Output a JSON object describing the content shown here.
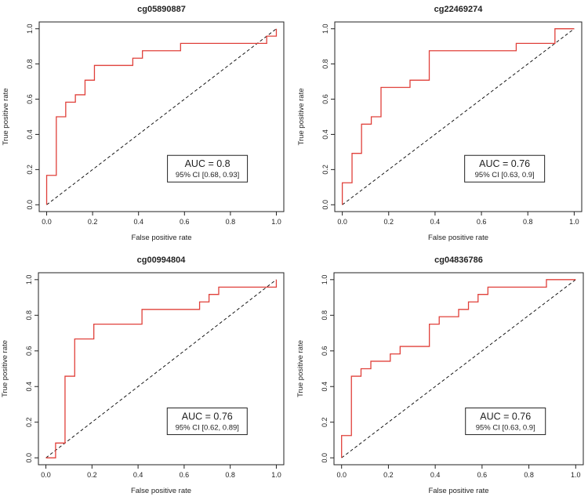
{
  "chart_data": [
    {
      "type": "line",
      "title": "cg05890887",
      "xlabel": "False positive rate",
      "ylabel": "True positive rate",
      "xlim": [
        0,
        1
      ],
      "ylim": [
        0,
        1
      ],
      "xticks": [
        "0.0",
        "0.2",
        "0.4",
        "0.6",
        "0.8",
        "1.0"
      ],
      "yticks": [
        "0.0",
        "0.2",
        "0.4",
        "0.6",
        "0.8",
        "1.0"
      ],
      "auc_label": "AUC = 0.8",
      "ci_label": "95% CI [0.68, 0.93]",
      "series": [
        {
          "name": "ROC",
          "color": "#e0403a",
          "x": [
            0,
            0,
            0.042,
            0.042,
            0.083,
            0.083,
            0.125,
            0.125,
            0.167,
            0.167,
            0.208,
            0.208,
            0.375,
            0.375,
            0.417,
            0.417,
            0.583,
            0.583,
            0.958,
            0.958,
            1.0,
            1.0
          ],
          "y": [
            0,
            0.167,
            0.167,
            0.5,
            0.5,
            0.583,
            0.583,
            0.625,
            0.625,
            0.708,
            0.708,
            0.792,
            0.792,
            0.833,
            0.833,
            0.875,
            0.875,
            0.917,
            0.917,
            0.958,
            0.958,
            1.0
          ]
        },
        {
          "name": "chance",
          "color": "#000000",
          "dash": true,
          "x": [
            0,
            1
          ],
          "y": [
            0,
            1
          ]
        }
      ]
    },
    {
      "type": "line",
      "title": "cg22469274",
      "xlabel": "False positive rate",
      "ylabel": "True positive rate",
      "xlim": [
        0,
        1
      ],
      "ylim": [
        0,
        1
      ],
      "xticks": [
        "0.0",
        "0.2",
        "0.4",
        "0.6",
        "0.8",
        "1.0"
      ],
      "yticks": [
        "0.0",
        "0.2",
        "0.4",
        "0.6",
        "0.8",
        "1.0"
      ],
      "auc_label": "AUC = 0.76",
      "ci_label": "95% CI [0.63, 0.9]",
      "series": [
        {
          "name": "ROC",
          "color": "#e0403a",
          "x": [
            0,
            0,
            0.042,
            0.042,
            0.083,
            0.083,
            0.125,
            0.125,
            0.167,
            0.167,
            0.292,
            0.292,
            0.375,
            0.375,
            0.75,
            0.75,
            0.917,
            0.917,
            1.0,
            1.0
          ],
          "y": [
            0,
            0.125,
            0.125,
            0.292,
            0.292,
            0.458,
            0.458,
            0.5,
            0.5,
            0.667,
            0.667,
            0.708,
            0.708,
            0.875,
            0.875,
            0.917,
            0.917,
            1.0,
            1.0,
            1.0
          ]
        },
        {
          "name": "chance",
          "color": "#000000",
          "dash": true,
          "x": [
            0,
            1
          ],
          "y": [
            0,
            1
          ]
        }
      ]
    },
    {
      "type": "line",
      "title": "cg00994804",
      "xlabel": "False positive rate",
      "ylabel": "True positive rate",
      "xlim": [
        0,
        1
      ],
      "ylim": [
        0,
        1
      ],
      "xticks": [
        "0.0",
        "0.2",
        "0.4",
        "0.6",
        "0.8",
        "1.0"
      ],
      "yticks": [
        "0.0",
        "0.2",
        "0.4",
        "0.6",
        "0.8",
        "1.0"
      ],
      "auc_label": "AUC = 0.76",
      "ci_label": "95% CI [0.62, 0.89]",
      "series": [
        {
          "name": "ROC",
          "color": "#e0403a",
          "x": [
            0,
            0.042,
            0.042,
            0.083,
            0.083,
            0.125,
            0.125,
            0.208,
            0.208,
            0.417,
            0.417,
            0.667,
            0.667,
            0.708,
            0.708,
            0.75,
            0.75,
            1.0,
            1.0
          ],
          "y": [
            0,
            0,
            0.083,
            0.083,
            0.458,
            0.458,
            0.667,
            0.667,
            0.75,
            0.75,
            0.833,
            0.833,
            0.875,
            0.875,
            0.917,
            0.917,
            0.958,
            0.958,
            1.0
          ]
        },
        {
          "name": "chance",
          "color": "#000000",
          "dash": true,
          "x": [
            0,
            1
          ],
          "y": [
            0,
            1
          ]
        }
      ]
    },
    {
      "type": "line",
      "title": "cg04836786",
      "xlabel": "False positive rate",
      "ylabel": "True positive rate",
      "xlim": [
        0,
        1
      ],
      "ylim": [
        0,
        1
      ],
      "xticks": [
        "0.0",
        "0.2",
        "0.4",
        "0.6",
        "0.8",
        "1.0"
      ],
      "yticks": [
        "0.0",
        "0.2",
        "0.4",
        "0.6",
        "0.8",
        "1.0"
      ],
      "auc_label": "AUC = 0.76",
      "ci_label": "95% CI [0.63, 0.9]",
      "series": [
        {
          "name": "ROC",
          "color": "#e0403a",
          "x": [
            0,
            0,
            0.042,
            0.042,
            0.083,
            0.083,
            0.125,
            0.125,
            0.208,
            0.208,
            0.25,
            0.25,
            0.375,
            0.375,
            0.417,
            0.417,
            0.5,
            0.5,
            0.542,
            0.542,
            0.583,
            0.583,
            0.625,
            0.625,
            0.875,
            0.875,
            1.0
          ],
          "y": [
            0,
            0.125,
            0.125,
            0.458,
            0.458,
            0.5,
            0.5,
            0.542,
            0.542,
            0.583,
            0.583,
            0.625,
            0.625,
            0.75,
            0.75,
            0.792,
            0.792,
            0.833,
            0.833,
            0.875,
            0.875,
            0.917,
            0.917,
            0.958,
            0.958,
            1.0,
            1.0
          ]
        },
        {
          "name": "chance",
          "color": "#000000",
          "dash": true,
          "x": [
            0,
            1
          ],
          "y": [
            0,
            1
          ]
        }
      ]
    }
  ]
}
